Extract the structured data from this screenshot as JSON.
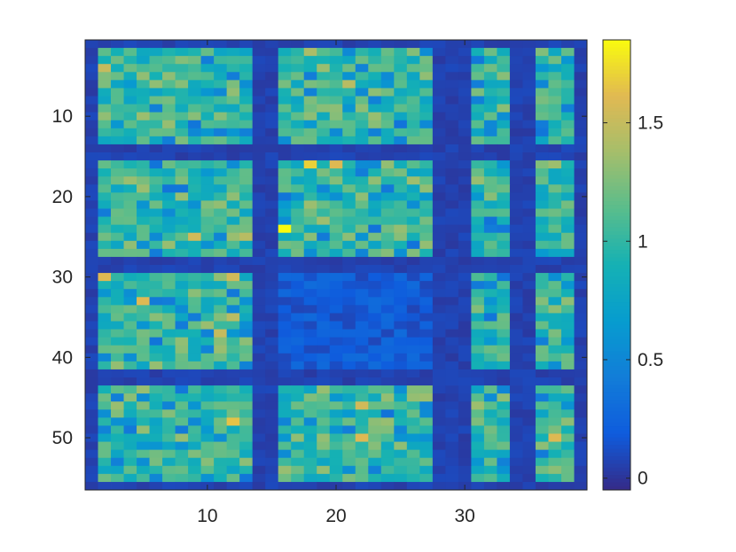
{
  "chart_data": {
    "type": "heatmap",
    "title": "",
    "xlabel": "",
    "ylabel": "",
    "xlim": [
      0.5,
      39.5
    ],
    "ylim": [
      0.5,
      56.5
    ],
    "x_ticks": [
      10,
      20,
      30
    ],
    "y_ticks": [
      10,
      20,
      30,
      40,
      50
    ],
    "colorbar": {
      "colormap": "parula",
      "clim": [
        -0.05,
        1.85
      ],
      "ticks": [
        0,
        0.5,
        1,
        1.5
      ],
      "tick_labels": [
        "0",
        "0.5",
        "1",
        "1.5"
      ]
    },
    "grid": false,
    "n_rows": 56,
    "n_cols": 39,
    "block_structure": {
      "column_blocks": [
        [
          2,
          13
        ],
        [
          16,
          27
        ],
        [
          31,
          33
        ],
        [
          36,
          38
        ]
      ],
      "row_blocks": [
        [
          2,
          13
        ],
        [
          16,
          27
        ],
        [
          30,
          41
        ],
        [
          44,
          55
        ]
      ],
      "background_value": 0.02,
      "dim_block": {
        "rows": [
          30,
          41
        ],
        "cols": [
          16,
          27
        ],
        "value_range": [
          0.08,
          0.3
        ]
      },
      "narrow_block_rows": [
        [
          2,
          13
        ],
        [
          16,
          27
        ],
        [
          30,
          41
        ],
        [
          44,
          55
        ]
      ]
    },
    "highlighted_cells": [
      {
        "row": 24,
        "col": 16,
        "value": 1.85
      },
      {
        "row": 16,
        "col": 18,
        "value": 1.7
      },
      {
        "row": 16,
        "col": 20,
        "value": 1.6
      },
      {
        "row": 30,
        "col": 2,
        "value": 1.6
      },
      {
        "row": 30,
        "col": 12,
        "value": 1.55
      },
      {
        "row": 33,
        "col": 5,
        "value": 1.6
      },
      {
        "row": 46,
        "col": 22,
        "value": 1.55
      },
      {
        "row": 50,
        "col": 22,
        "value": 1.6
      },
      {
        "row": 48,
        "col": 12,
        "value": 1.65
      },
      {
        "row": 25,
        "col": 9,
        "value": 1.55
      },
      {
        "row": 25,
        "col": 13,
        "value": 1.45
      },
      {
        "row": 37,
        "col": 11,
        "value": 1.5
      },
      {
        "row": 35,
        "col": 12,
        "value": 1.45
      },
      {
        "row": 4,
        "col": 2,
        "value": 1.5
      },
      {
        "row": 6,
        "col": 21,
        "value": 1.45
      },
      {
        "row": 2,
        "col": 18,
        "value": 1.4
      },
      {
        "row": 18,
        "col": 26,
        "value": 1.35
      },
      {
        "row": 16,
        "col": 37,
        "value": 1.35
      },
      {
        "row": 50,
        "col": 37,
        "value": 1.6
      },
      {
        "row": 48,
        "col": 38,
        "value": 1.3
      }
    ]
  }
}
